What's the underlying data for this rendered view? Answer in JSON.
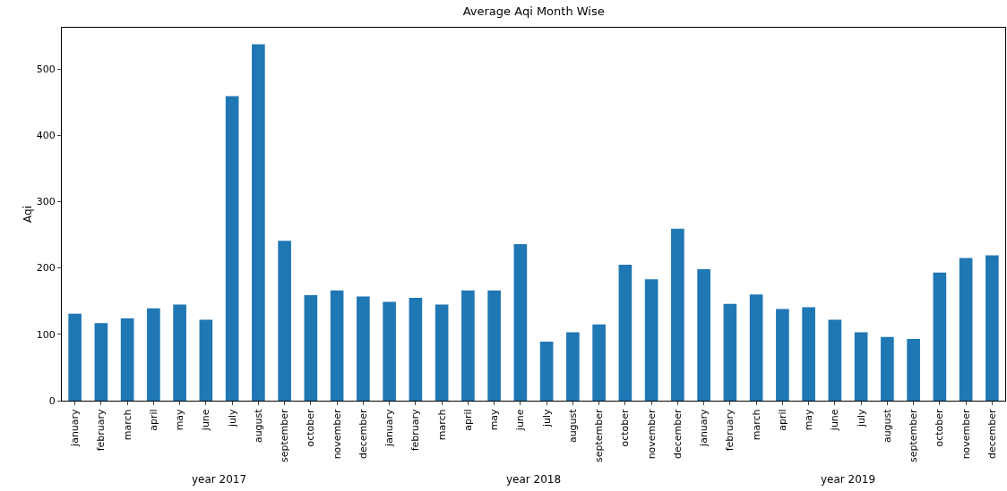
{
  "chart_data": {
    "type": "bar",
    "title": "Average Aqi Month Wise",
    "ylabel": "Aqi",
    "categories": [
      "january",
      "february",
      "march",
      "april",
      "may",
      "june",
      "july",
      "august",
      "september",
      "october",
      "november",
      "december",
      "january",
      "february",
      "march",
      "april",
      "may",
      "june",
      "july",
      "august",
      "september",
      "october",
      "november",
      "december",
      "january",
      "february",
      "march",
      "april",
      "may",
      "june",
      "july",
      "august",
      "september",
      "october",
      "november",
      "december"
    ],
    "values": [
      131,
      117,
      124,
      139,
      145,
      122,
      459,
      537,
      241,
      159,
      166,
      157,
      149,
      155,
      145,
      166,
      166,
      236,
      89,
      103,
      115,
      205,
      183,
      259,
      198,
      146,
      160,
      138,
      141,
      122,
      103,
      96,
      93,
      193,
      215,
      219
    ],
    "color": "#1f77b4",
    "ylim": [
      0,
      562
    ],
    "yticks": [
      0,
      100,
      200,
      300,
      400,
      500
    ],
    "grid": false,
    "annotations": [
      "year 2017",
      "year 2018",
      "year 2019"
    ]
  }
}
